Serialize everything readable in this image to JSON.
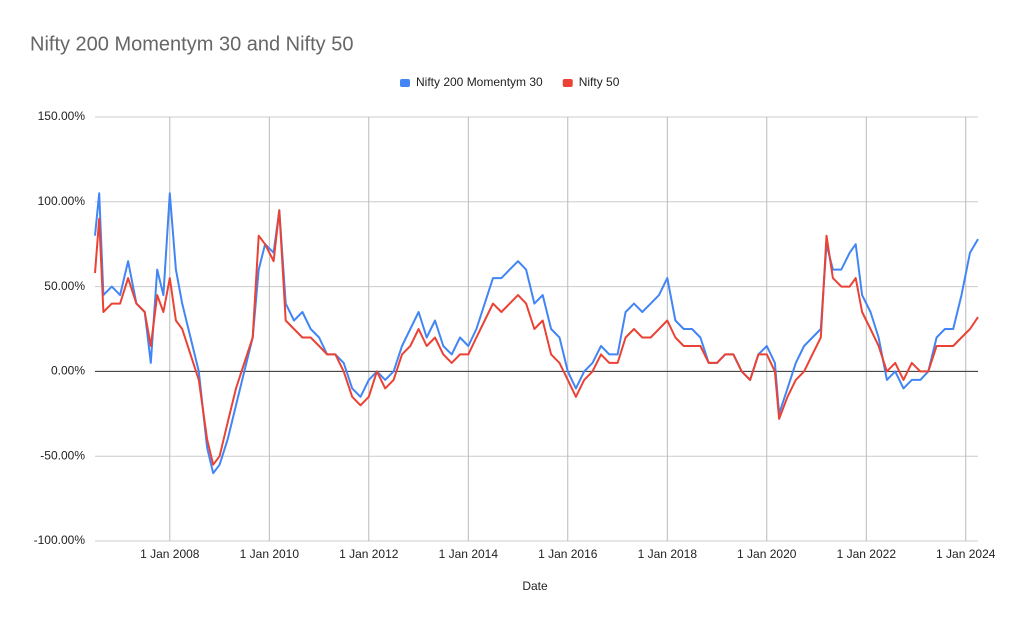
{
  "chart_data": {
    "type": "line",
    "title": "Nifty 200 Momentym 30 and Nifty 50",
    "x_label": "Date",
    "x": [
      "2006-07-01",
      "2006-08-01",
      "2006-09-01",
      "2006-11-01",
      "2007-01-01",
      "2007-03-01",
      "2007-05-01",
      "2007-07-01",
      "2007-08-15",
      "2007-10-01",
      "2007-11-15",
      "2008-01-01",
      "2008-02-15",
      "2008-04-01",
      "2008-06-01",
      "2008-08-01",
      "2008-10-01",
      "2008-11-15",
      "2009-01-01",
      "2009-03-01",
      "2009-05-01",
      "2009-07-01",
      "2009-09-01",
      "2009-10-15",
      "2009-12-01",
      "2010-02-01",
      "2010-03-15",
      "2010-05-01",
      "2010-07-01",
      "2010-09-01",
      "2010-11-01",
      "2011-01-01",
      "2011-03-01",
      "2011-05-01",
      "2011-07-01",
      "2011-09-01",
      "2011-11-01",
      "2012-01-01",
      "2012-03-01",
      "2012-05-01",
      "2012-07-01",
      "2012-09-01",
      "2012-11-01",
      "2013-01-01",
      "2013-03-01",
      "2013-05-01",
      "2013-07-01",
      "2013-09-01",
      "2013-11-01",
      "2014-01-01",
      "2014-03-01",
      "2014-05-01",
      "2014-07-01",
      "2014-09-01",
      "2014-11-01",
      "2015-01-01",
      "2015-03-01",
      "2015-05-01",
      "2015-07-01",
      "2015-09-01",
      "2015-11-01",
      "2016-01-01",
      "2016-03-01",
      "2016-05-01",
      "2016-07-01",
      "2016-09-01",
      "2016-11-01",
      "2017-01-01",
      "2017-03-01",
      "2017-05-01",
      "2017-07-01",
      "2017-09-01",
      "2017-11-01",
      "2018-01-01",
      "2018-03-01",
      "2018-05-01",
      "2018-07-01",
      "2018-09-01",
      "2018-11-01",
      "2019-01-01",
      "2019-03-01",
      "2019-05-01",
      "2019-07-01",
      "2019-09-01",
      "2019-11-01",
      "2020-01-01",
      "2020-03-01",
      "2020-04-01",
      "2020-06-01",
      "2020-08-01",
      "2020-10-01",
      "2020-12-01",
      "2021-02-01",
      "2021-03-15",
      "2021-05-01",
      "2021-07-01",
      "2021-09-01",
      "2021-10-15",
      "2021-12-01",
      "2022-02-01",
      "2022-04-01",
      "2022-06-01",
      "2022-08-01",
      "2022-10-01",
      "2022-12-01",
      "2023-02-01",
      "2023-04-01",
      "2023-06-01",
      "2023-08-01",
      "2023-10-01",
      "2023-12-01",
      "2024-02-01",
      "2024-03-31"
    ],
    "series": [
      {
        "name": "Nifty 200 Momentym 30",
        "color": "#4285f4",
        "values": [
          80,
          105,
          45,
          50,
          45,
          65,
          40,
          35,
          5,
          60,
          45,
          105,
          60,
          40,
          20,
          0,
          -45,
          -60,
          -55,
          -40,
          -20,
          0,
          20,
          60,
          75,
          70,
          95,
          40,
          30,
          35,
          25,
          20,
          10,
          10,
          5,
          -10,
          -15,
          -5,
          0,
          -5,
          0,
          15,
          25,
          35,
          20,
          30,
          15,
          10,
          20,
          15,
          25,
          40,
          55,
          55,
          60,
          65,
          60,
          40,
          45,
          25,
          20,
          0,
          -10,
          0,
          5,
          15,
          10,
          10,
          35,
          40,
          35,
          40,
          45,
          55,
          30,
          25,
          25,
          20,
          5,
          5,
          10,
          10,
          0,
          -5,
          10,
          15,
          5,
          -25,
          -10,
          5,
          15,
          20,
          25,
          75,
          60,
          60,
          70,
          75,
          45,
          35,
          20,
          -5,
          0,
          -10,
          -5,
          -5,
          0,
          20,
          25,
          25,
          45,
          70,
          78
        ]
      },
      {
        "name": "Nifty 50",
        "color": "#ea4335",
        "values": [
          58,
          90,
          35,
          40,
          40,
          55,
          40,
          35,
          15,
          45,
          35,
          55,
          30,
          25,
          10,
          -5,
          -40,
          -55,
          -50,
          -30,
          -10,
          5,
          20,
          80,
          75,
          65,
          95,
          30,
          25,
          20,
          20,
          15,
          10,
          10,
          0,
          -15,
          -20,
          -15,
          0,
          -10,
          -5,
          10,
          15,
          25,
          15,
          20,
          10,
          5,
          10,
          10,
          20,
          30,
          40,
          35,
          40,
          45,
          40,
          25,
          30,
          10,
          5,
          -5,
          -15,
          -5,
          0,
          10,
          5,
          5,
          20,
          25,
          20,
          20,
          25,
          30,
          20,
          15,
          15,
          15,
          5,
          5,
          10,
          10,
          0,
          -5,
          10,
          10,
          0,
          -28,
          -15,
          -5,
          0,
          10,
          20,
          80,
          55,
          50,
          50,
          55,
          35,
          25,
          15,
          0,
          5,
          -5,
          5,
          0,
          0,
          15,
          15,
          15,
          20,
          25,
          32
        ]
      }
    ],
    "xlim": [
      "2006-07-01",
      "2024-03-31"
    ],
    "xticks": [
      {
        "value": "2008-01-01",
        "label": "1 Jan 2008"
      },
      {
        "value": "2010-01-01",
        "label": "1 Jan 2010"
      },
      {
        "value": "2012-01-01",
        "label": "1 Jan 2012"
      },
      {
        "value": "2014-01-01",
        "label": "1 Jan 2014"
      },
      {
        "value": "2016-01-01",
        "label": "1 Jan 2016"
      },
      {
        "value": "2018-01-01",
        "label": "1 Jan 2018"
      },
      {
        "value": "2020-01-01",
        "label": "1 Jan 2020"
      },
      {
        "value": "2022-01-01",
        "label": "1 Jan 2022"
      },
      {
        "value": "2024-01-01",
        "label": "1 Jan 2024"
      }
    ],
    "ylim": [
      -100,
      150
    ],
    "yticks": [
      {
        "value": -100,
        "label": "-100.00%"
      },
      {
        "value": -50,
        "label": "-50.00%"
      },
      {
        "value": 0,
        "label": "0.00%"
      },
      {
        "value": 50,
        "label": "50.00%"
      },
      {
        "value": 100,
        "label": "100.00%"
      },
      {
        "value": 150,
        "label": "150.00%"
      }
    ],
    "grid": true
  }
}
